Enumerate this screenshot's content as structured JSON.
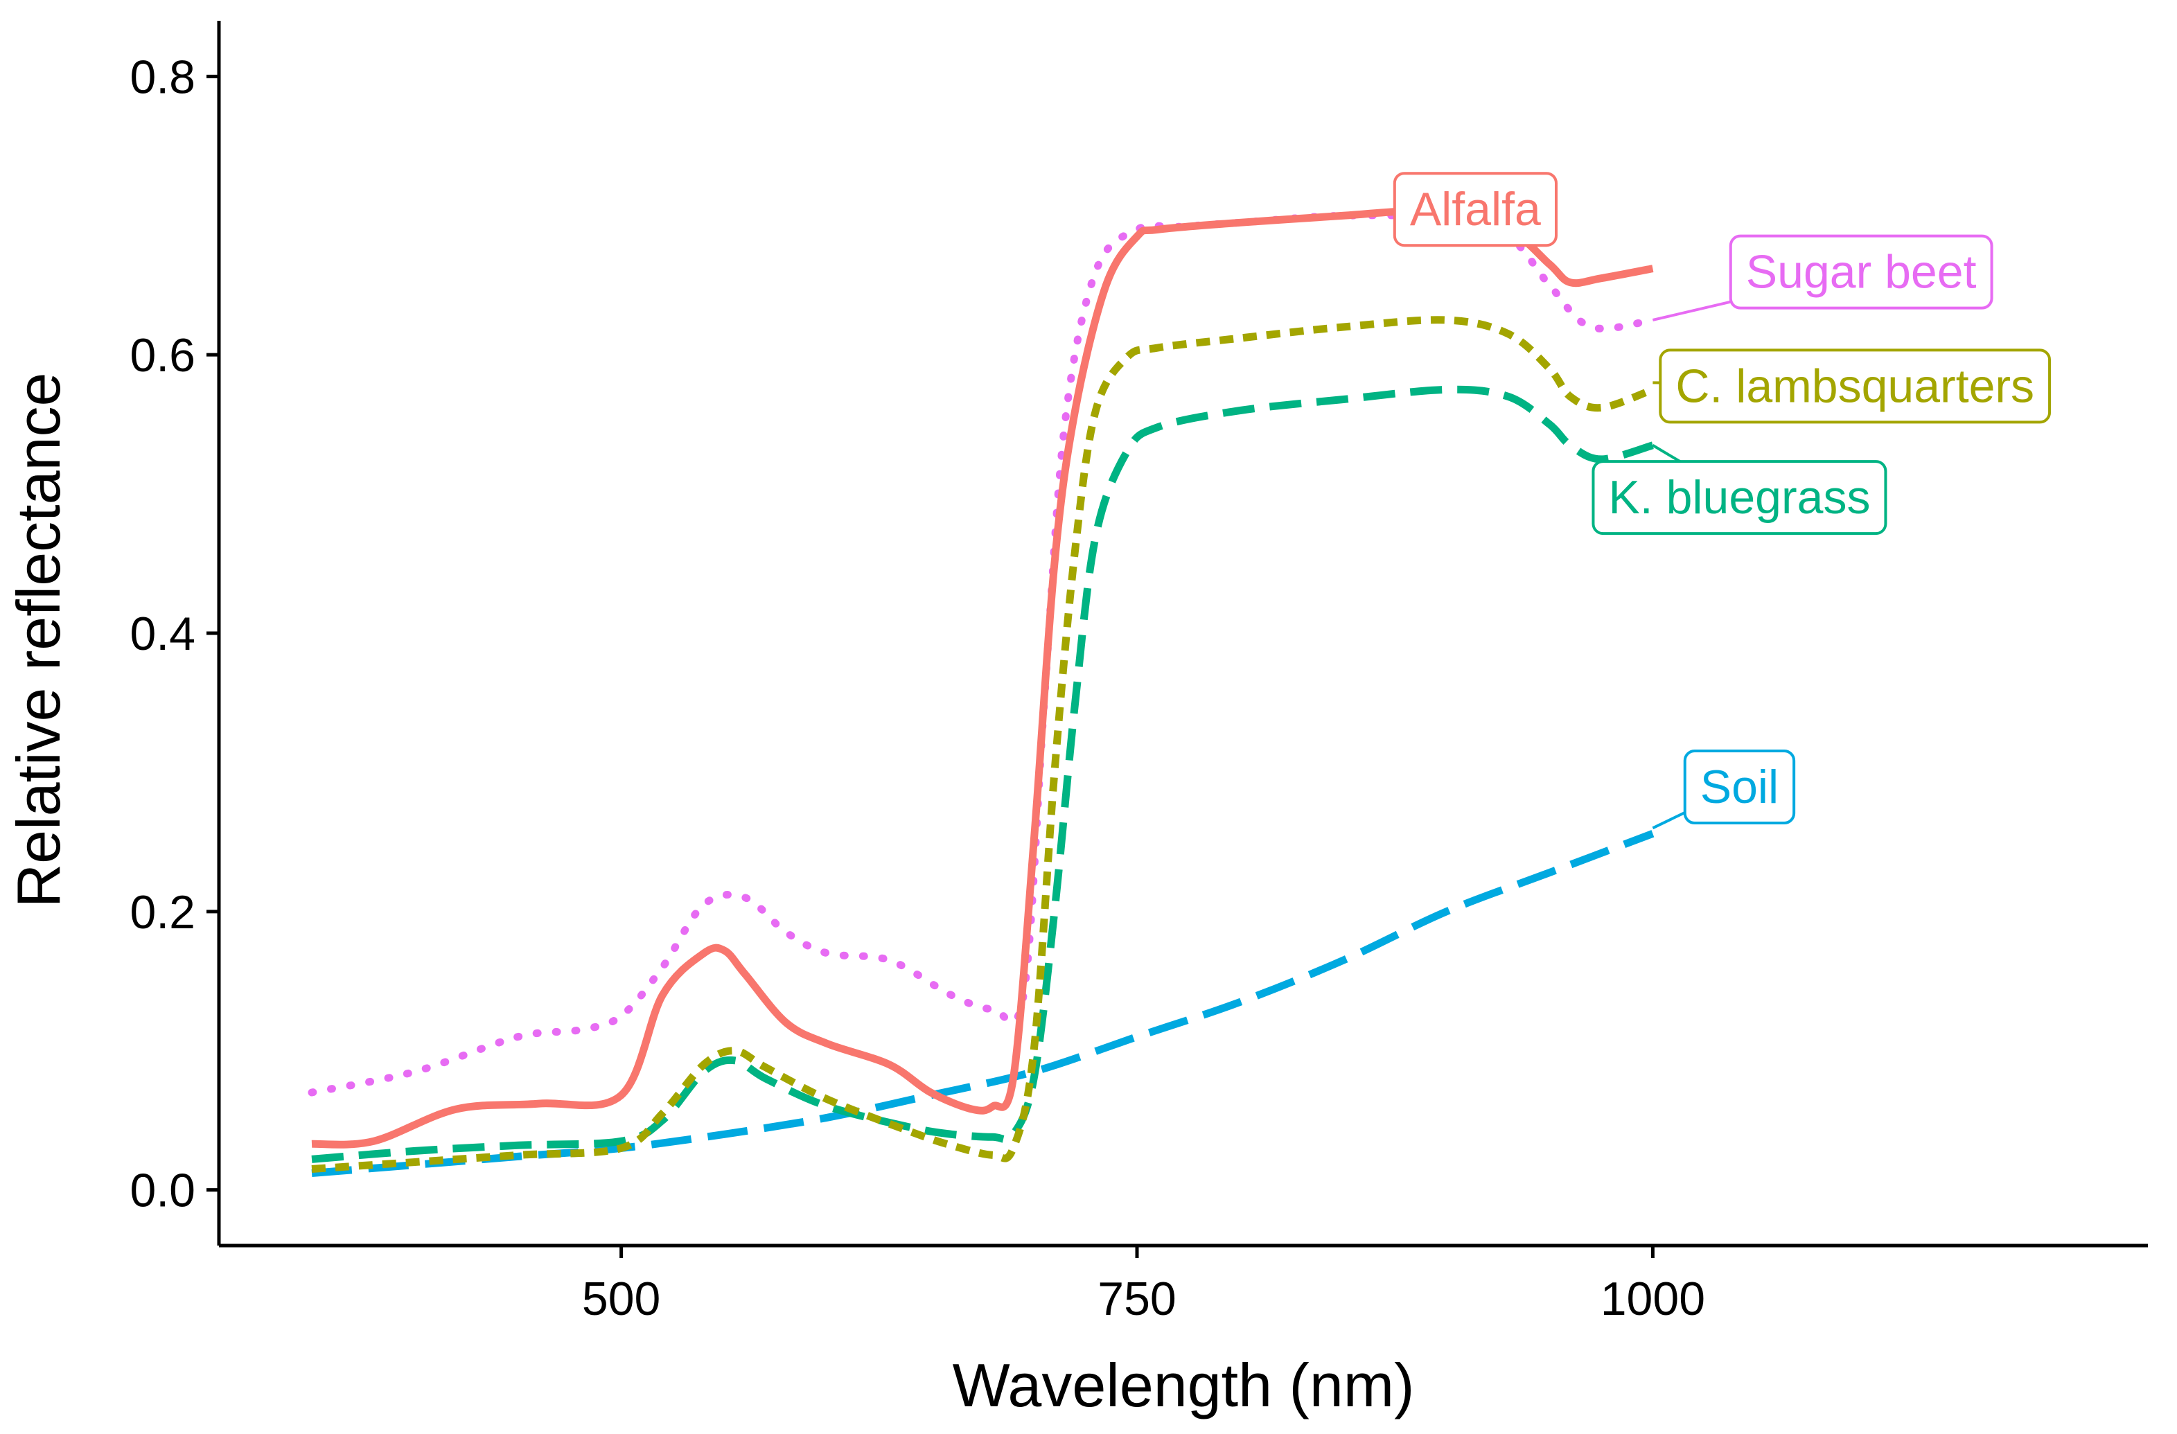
{
  "chart_data": {
    "type": "line",
    "title": "",
    "xlabel": "Wavelength (nm)",
    "ylabel": "Relative reflectance",
    "xlim": [
      305,
      1240
    ],
    "ylim": [
      -0.04,
      0.84
    ],
    "xticks": [
      500,
      750,
      1000
    ],
    "xtick_labels": [
      "500",
      "750",
      "1000"
    ],
    "yticks": [
      0.0,
      0.2,
      0.4,
      0.6,
      0.8
    ],
    "ytick_labels": [
      "0.0",
      "0.2",
      "0.4",
      "0.6",
      "0.8"
    ],
    "grid": false,
    "legend": "direct labels near line ends",
    "series": [
      {
        "name": "Soil",
        "label": "Soil",
        "color": "#00A9E0",
        "dash": "dashed-long",
        "label_anchor": [
          1000,
          0.26
        ],
        "label_pos": [
          1042,
          0.29
        ],
        "x": [
          350,
          400,
          450,
          500,
          550,
          600,
          650,
          700,
          750,
          800,
          850,
          900,
          950,
          1000
        ],
        "y": [
          0.012,
          0.018,
          0.024,
          0.03,
          0.04,
          0.052,
          0.068,
          0.085,
          0.11,
          0.135,
          0.165,
          0.2,
          0.228,
          0.256
        ]
      },
      {
        "name": "K. bluegrass",
        "label": "K. bluegrass",
        "color": "#00B383",
        "dash": "dashed",
        "label_anchor": [
          1000,
          0.535
        ],
        "label_pos": [
          1042,
          0.498
        ],
        "x": [
          350,
          400,
          450,
          500,
          520,
          540,
          555,
          570,
          600,
          640,
          660,
          680,
          690,
          700,
          710,
          720,
          730,
          745,
          760,
          800,
          850,
          900,
          930,
          950,
          960,
          975,
          1000
        ],
        "y": [
          0.022,
          0.028,
          0.032,
          0.035,
          0.05,
          0.085,
          0.093,
          0.08,
          0.06,
          0.045,
          0.04,
          0.038,
          0.04,
          0.08,
          0.2,
          0.35,
          0.47,
          0.53,
          0.548,
          0.56,
          0.568,
          0.575,
          0.57,
          0.55,
          0.535,
          0.525,
          0.535
        ]
      },
      {
        "name": "C. lambsquarters",
        "label": "C. lambsquarters",
        "color": "#A3A500",
        "dash": "short-dash",
        "label_anchor": [
          1000,
          0.58
        ],
        "label_pos": [
          1098,
          0.578
        ],
        "x": [
          350,
          400,
          450,
          500,
          520,
          540,
          555,
          570,
          600,
          640,
          660,
          680,
          690,
          700,
          710,
          720,
          730,
          745,
          760,
          800,
          850,
          900,
          930,
          950,
          960,
          975,
          1000
        ],
        "y": [
          0.015,
          0.02,
          0.025,
          0.03,
          0.055,
          0.09,
          0.1,
          0.088,
          0.065,
          0.042,
          0.032,
          0.025,
          0.03,
          0.1,
          0.3,
          0.46,
          0.56,
          0.598,
          0.605,
          0.612,
          0.62,
          0.625,
          0.615,
          0.59,
          0.57,
          0.562,
          0.575
        ]
      },
      {
        "name": "Sugar beet",
        "label": "Sugar beet",
        "color": "#E76BF3",
        "dash": "dotted",
        "label_anchor": [
          1000,
          0.625
        ],
        "label_pos": [
          1101,
          0.66
        ],
        "x": [
          350,
          400,
          450,
          480,
          500,
          520,
          540,
          560,
          580,
          600,
          630,
          660,
          680,
          695,
          705,
          715,
          730,
          750,
          770,
          800,
          850,
          900,
          930,
          950,
          970,
          1000
        ],
        "y": [
          0.07,
          0.085,
          0.11,
          0.115,
          0.125,
          0.16,
          0.205,
          0.21,
          0.185,
          0.17,
          0.165,
          0.14,
          0.13,
          0.14,
          0.35,
          0.55,
          0.66,
          0.69,
          0.692,
          0.695,
          0.7,
          0.698,
          0.685,
          0.65,
          0.62,
          0.625
        ]
      },
      {
        "name": "Alfalfa",
        "label": "Alfalfa",
        "color": "#F8766D",
        "dash": "solid",
        "label_anchor": [
          915,
          0.7
        ],
        "label_pos": [
          914,
          0.705
        ],
        "x": [
          350,
          380,
          420,
          460,
          500,
          520,
          540,
          550,
          560,
          580,
          600,
          630,
          650,
          670,
          680,
          690,
          700,
          710,
          720,
          735,
          750,
          760,
          800,
          850,
          880,
          900,
          930,
          950,
          960,
          975,
          1000
        ],
        "y": [
          0.033,
          0.035,
          0.058,
          0.062,
          0.068,
          0.14,
          0.17,
          0.172,
          0.155,
          0.12,
          0.105,
          0.09,
          0.07,
          0.058,
          0.06,
          0.08,
          0.25,
          0.45,
          0.56,
          0.65,
          0.685,
          0.69,
          0.695,
          0.7,
          0.703,
          0.7,
          0.69,
          0.665,
          0.652,
          0.655,
          0.662
        ]
      }
    ]
  }
}
